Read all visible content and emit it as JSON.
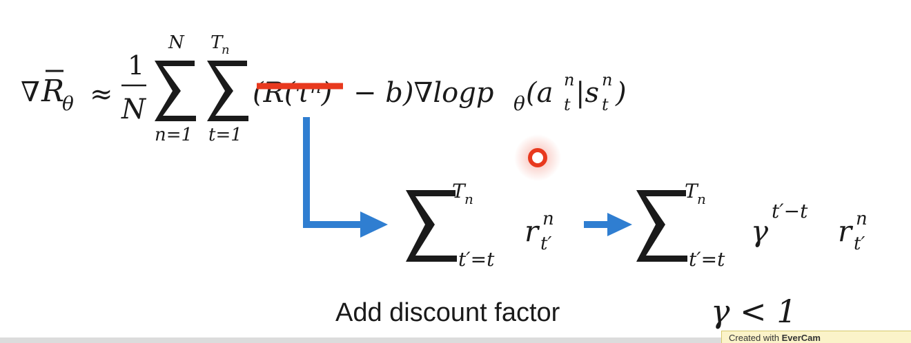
{
  "formula": {
    "lhs_nabla": "∇",
    "lhs_R": "R",
    "lhs_bar": "¯",
    "lhs_theta": "θ",
    "approx": "≈",
    "frac_num": "1",
    "frac_den": "N",
    "sum1_top": "N",
    "sum1_bottom": "n=1",
    "sum2_top_main": "T",
    "sum2_top_sub": "n",
    "sum2_bottom": "t=1",
    "struck_term": "(R(τⁿ)",
    "rest": "− b)∇logp",
    "rest_theta": "θ",
    "rest_paren": "(a",
    "a_sup": "n",
    "a_sub": "t",
    "bar": "|s",
    "s_sup": "n",
    "s_sub": "t",
    "close": ")"
  },
  "middle_sum": {
    "top_main": "T",
    "top_sub": "n",
    "bottom": "t′=t",
    "term": "r",
    "term_sup": "n",
    "term_sub": "t′"
  },
  "right_sum": {
    "top_main": "T",
    "top_sub": "n",
    "bottom": "t′=t",
    "gamma": "γ",
    "gamma_exp": "t′−t",
    "term": "r",
    "term_sup": "n",
    "term_sub": "t′"
  },
  "caption": "Add discount factor",
  "condition": "γ < 1",
  "watermark": {
    "prefix": "Created with ",
    "brand": "EverCam"
  },
  "colors": {
    "strike": "#e8391e",
    "arrow": "#2f7ed1",
    "pointer": "#e8391e"
  }
}
